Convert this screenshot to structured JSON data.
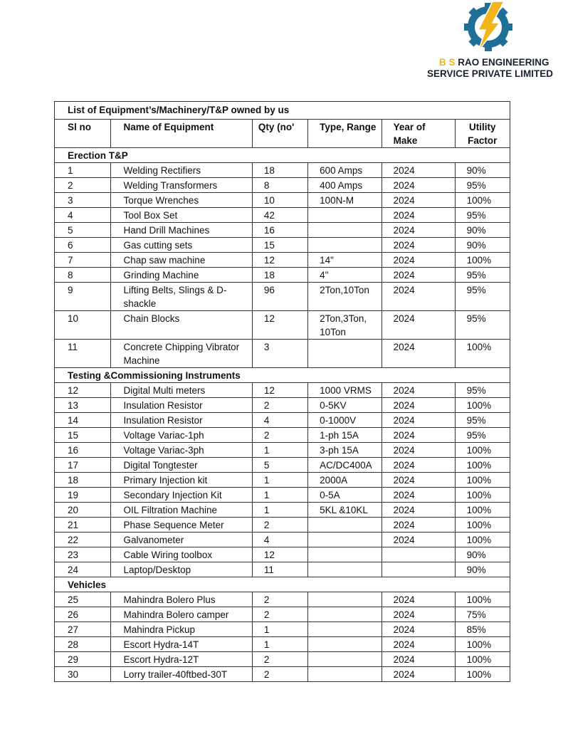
{
  "logo": {
    "line1_prefix": "B S",
    "line1_rest": "RAO ENGINEERING",
    "line2": "SERVICE PRIVATE LIMITED",
    "colors": {
      "gear": "#1f6f96",
      "bolt": "#f2b51c",
      "text": "#1a2230"
    }
  },
  "table": {
    "title": "List of Equipment’s/Machinery/T&P owned by us",
    "headers": [
      "Sl no",
      "Name of Equipment",
      "Qty (no'",
      "Type, Range",
      "Year of Make",
      "Utility Factor"
    ],
    "sections": [
      {
        "name": "Erection T&P",
        "rows": [
          [
            "1",
            "Welding Rectifiers",
            "18",
            "600 Amps",
            "2024",
            "90%"
          ],
          [
            "2",
            "Welding Transformers",
            "8",
            "400 Amps",
            "2024",
            "95%"
          ],
          [
            "3",
            "Torque Wrenches",
            "10",
            "100N-M",
            "2024",
            "100%"
          ],
          [
            "4",
            "Tool Box Set",
            "42",
            "",
            "2024",
            "95%"
          ],
          [
            "5",
            "Hand Drill Machines",
            "16",
            "",
            "2024",
            "90%"
          ],
          [
            "6",
            "Gas cutting sets",
            "15",
            "",
            "2024",
            "90%"
          ],
          [
            "7",
            "Chap saw machine",
            "12",
            "14\"",
            "2024",
            "100%"
          ],
          [
            "8",
            "Grinding Machine",
            "18",
            "4\"",
            "2024",
            "95%"
          ],
          [
            "9",
            "Lifting Belts, Slings & D-shackle",
            "96",
            "2Ton,10Ton",
            "2024",
            "95%"
          ],
          [
            "10",
            "Chain Blocks",
            "12",
            "2Ton,3Ton, 10Ton",
            "2024",
            "95%"
          ],
          [
            "11",
            "Concrete Chipping Vibrator Machine",
            "3",
            "",
            "2024",
            "100%"
          ]
        ]
      },
      {
        "name": "Testing &Commissioning Instruments",
        "rows": [
          [
            "12",
            "Digital Multi meters",
            "12",
            "1000 VRMS",
            "2024",
            "95%"
          ],
          [
            "13",
            "Insulation Resistor",
            "2",
            "0-5KV",
            "2024",
            "100%"
          ],
          [
            "14",
            "Insulation Resistor",
            "4",
            "0-1000V",
            "2024",
            "95%"
          ],
          [
            "15",
            "Voltage Variac-1ph",
            "2",
            "1-ph 15A",
            "2024",
            "95%"
          ],
          [
            "16",
            "Voltage Variac-3ph",
            "1",
            "3-ph 15A",
            "2024",
            "100%"
          ],
          [
            "17",
            "Digital Tongtester",
            "5",
            "AC/DC400A",
            "2024",
            "100%"
          ],
          [
            "18",
            "Primary Injection kit",
            "1",
            "2000A",
            "2024",
            "100%"
          ],
          [
            "19",
            "Secondary Injection Kit",
            "1",
            "0-5A",
            "2024",
            "100%"
          ],
          [
            "20",
            "OIL Filtration Machine",
            "1",
            "5KL &10KL",
            "2024",
            "100%"
          ],
          [
            "21",
            "Phase Sequence Meter",
            "2",
            "",
            "2024",
            "100%"
          ],
          [
            "22",
            "Galvanometer",
            "4",
            "",
            "2024",
            "100%"
          ],
          [
            "23",
            "Cable Wiring toolbox",
            "12",
            "",
            "",
            "90%"
          ],
          [
            "24",
            "Laptop/Desktop",
            "11",
            "",
            "",
            "90%"
          ]
        ]
      },
      {
        "name": "Vehicles",
        "rows": [
          [
            "25",
            "Mahindra Bolero Plus",
            "2",
            "",
            "2024",
            "100%"
          ],
          [
            "26",
            "Mahindra Bolero camper",
            "2",
            "",
            "2024",
            "75%"
          ],
          [
            "27",
            "Mahindra Pickup",
            "1",
            "",
            "2024",
            "85%"
          ],
          [
            "28",
            "Escort Hydra-14T",
            "1",
            "",
            "2024",
            "100%"
          ],
          [
            "29",
            "Escort Hydra-12T",
            "2",
            "",
            "2024",
            "100%"
          ],
          [
            "30",
            "Lorry trailer-40ftbed-30T",
            "2",
            "",
            "2024",
            "100%"
          ]
        ]
      }
    ]
  }
}
